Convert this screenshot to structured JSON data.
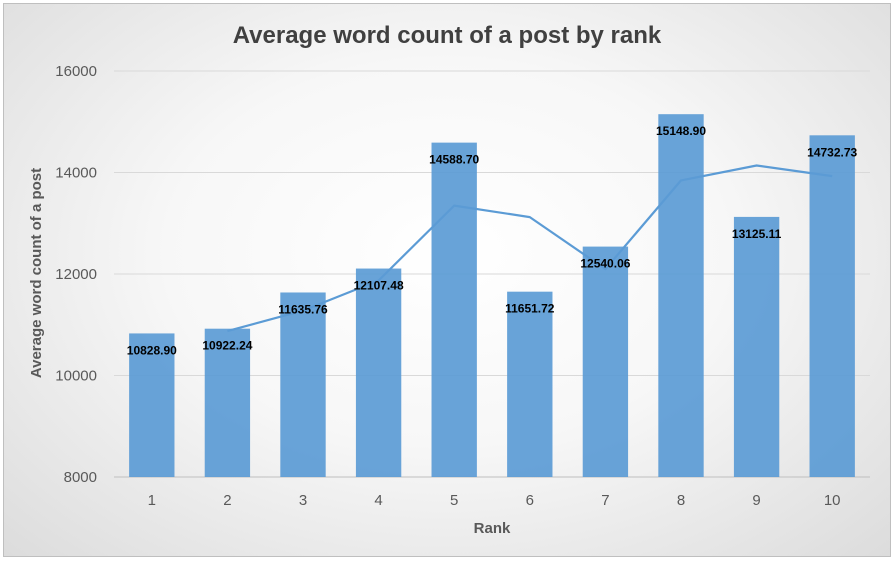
{
  "chart_data": {
    "type": "bar",
    "title": "Average word count of a post by rank",
    "xlabel": "Rank",
    "ylabel": "Average word count of a post",
    "categories": [
      "1",
      "2",
      "3",
      "4",
      "5",
      "6",
      "7",
      "8",
      "9",
      "10"
    ],
    "values": [
      10828.9,
      10922.24,
      11635.76,
      12107.48,
      14588.7,
      11651.72,
      12540.06,
      15148.9,
      13125.11,
      14732.73
    ],
    "data_labels": [
      "10828.90",
      "10922.24",
      "11635.76",
      "12107.48",
      "14588.70",
      "11651.72",
      "12540.06",
      "15148.90",
      "13125.11",
      "14732.73"
    ],
    "trendline": {
      "type": "moving-average",
      "period": 2,
      "values": [
        null,
        10875.57,
        11279.0,
        11871.62,
        13348.09,
        13120.21,
        12095.89,
        13844.48,
        14137.01,
        13928.92
      ]
    },
    "ylim": [
      8000,
      16000
    ],
    "yticks": [
      8000,
      10000,
      12000,
      14000,
      16000
    ],
    "grid": true,
    "legend": "none",
    "colors": {
      "bar": "#5b9bd5",
      "line": "#5b9bd5",
      "grid": "#d9d9d9",
      "text": "#595959"
    }
  }
}
